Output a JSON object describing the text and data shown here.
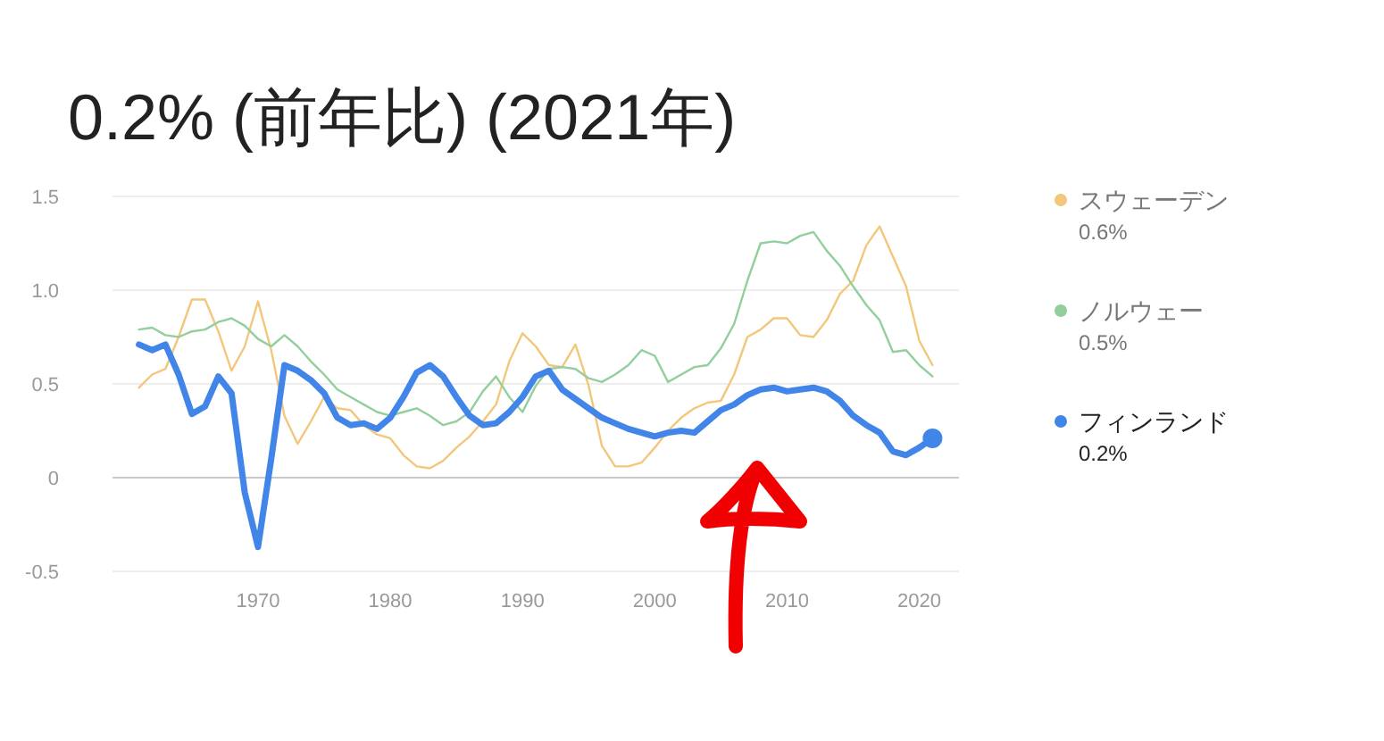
{
  "chart_data": {
    "type": "line",
    "title": "0.2% (前年比) (2021年)",
    "x": [
      1961,
      1962,
      1963,
      1964,
      1965,
      1966,
      1967,
      1968,
      1969,
      1970,
      1971,
      1972,
      1973,
      1974,
      1975,
      1976,
      1977,
      1978,
      1979,
      1980,
      1981,
      1982,
      1983,
      1984,
      1985,
      1986,
      1987,
      1988,
      1989,
      1990,
      1991,
      1992,
      1993,
      1994,
      1995,
      1996,
      1997,
      1998,
      1999,
      2000,
      2001,
      2002,
      2003,
      2004,
      2005,
      2006,
      2007,
      2008,
      2009,
      2010,
      2011,
      2012,
      2013,
      2014,
      2015,
      2016,
      2017,
      2018,
      2019,
      2020,
      2021
    ],
    "series": [
      {
        "name": "スウェーデン",
        "color": "#f3c77b",
        "values": [
          0.48,
          0.55,
          0.58,
          0.75,
          0.95,
          0.95,
          0.78,
          0.57,
          0.7,
          0.94,
          0.68,
          0.33,
          0.18,
          0.3,
          0.43,
          0.37,
          0.36,
          0.28,
          0.23,
          0.21,
          0.12,
          0.06,
          0.05,
          0.09,
          0.16,
          0.22,
          0.3,
          0.39,
          0.62,
          0.77,
          0.7,
          0.6,
          0.59,
          0.71,
          0.49,
          0.17,
          0.06,
          0.06,
          0.08,
          0.16,
          0.25,
          0.32,
          0.37,
          0.4,
          0.41,
          0.55,
          0.75,
          0.79,
          0.85,
          0.85,
          0.76,
          0.75,
          0.84,
          0.98,
          1.05,
          1.24,
          1.34,
          1.18,
          1.02,
          0.73,
          0.6
        ]
      },
      {
        "name": "ノルウェー",
        "color": "#93cf9c",
        "values": [
          0.79,
          0.8,
          0.76,
          0.75,
          0.78,
          0.79,
          0.83,
          0.85,
          0.81,
          0.74,
          0.7,
          0.76,
          0.7,
          0.62,
          0.55,
          0.47,
          0.43,
          0.39,
          0.35,
          0.33,
          0.35,
          0.37,
          0.33,
          0.28,
          0.3,
          0.35,
          0.46,
          0.54,
          0.43,
          0.35,
          0.49,
          0.58,
          0.59,
          0.58,
          0.53,
          0.51,
          0.55,
          0.6,
          0.68,
          0.65,
          0.51,
          0.55,
          0.59,
          0.6,
          0.69,
          0.82,
          1.05,
          1.25,
          1.26,
          1.25,
          1.29,
          1.31,
          1.21,
          1.13,
          1.02,
          0.92,
          0.84,
          0.67,
          0.68,
          0.6,
          0.54
        ]
      },
      {
        "name": "フィンランド",
        "color": "#4285e8",
        "values": [
          0.71,
          0.68,
          0.71,
          0.55,
          0.34,
          0.38,
          0.54,
          0.45,
          -0.08,
          -0.37,
          0.1,
          0.6,
          0.57,
          0.52,
          0.45,
          0.32,
          0.28,
          0.29,
          0.26,
          0.32,
          0.43,
          0.56,
          0.6,
          0.54,
          0.43,
          0.33,
          0.28,
          0.29,
          0.35,
          0.43,
          0.54,
          0.57,
          0.47,
          0.42,
          0.37,
          0.32,
          0.29,
          0.26,
          0.24,
          0.22,
          0.24,
          0.25,
          0.24,
          0.3,
          0.36,
          0.39,
          0.44,
          0.47,
          0.48,
          0.46,
          0.47,
          0.48,
          0.46,
          0.41,
          0.33,
          0.28,
          0.24,
          0.14,
          0.12,
          0.16,
          0.21
        ]
      }
    ],
    "annotations": [
      "0.6%",
      "0.5%",
      "0.2%"
    ],
    "xlim": [
      1959,
      2023
    ],
    "xticks": [
      1970,
      1980,
      1990,
      2000,
      2010,
      2020
    ],
    "ylim": [
      -0.5,
      1.5
    ],
    "yticks": [
      {
        "value": -0.5,
        "label": "-0.5"
      },
      0,
      {
        "value": 0.5,
        "label": "0.5"
      },
      {
        "value": 1.0,
        "label": "1.0"
      },
      {
        "value": 1.5,
        "label": "1.5"
      }
    ],
    "grid": "y",
    "legend": "right"
  }
}
